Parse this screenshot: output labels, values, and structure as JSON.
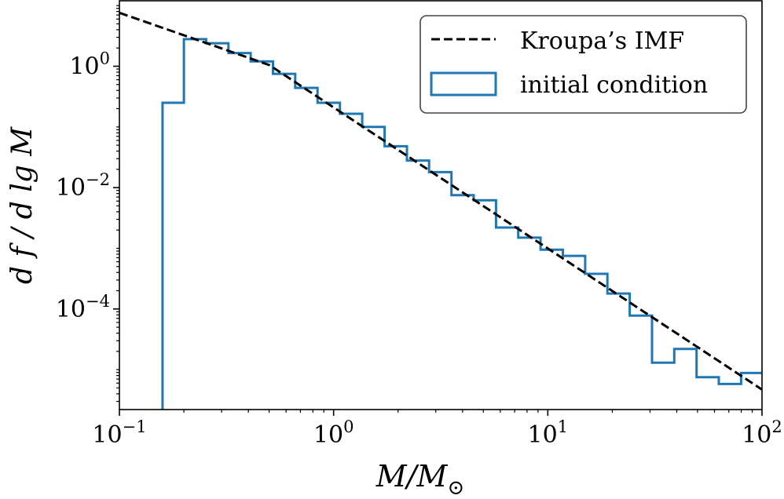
{
  "chart_data": {
    "type": "step",
    "xscale": "log",
    "yscale": "log",
    "xlim": [
      0.1,
      100
    ],
    "ylim": [
      2.2e-06,
      12
    ],
    "xlabel": {
      "main": "M/M",
      "sub": "⊙"
    },
    "ylabel": "d f / d lg M",
    "x_ticks": [
      {
        "value": 0.1,
        "base": "10",
        "exp": "−1"
      },
      {
        "value": 1,
        "base": "10",
        "exp": "0"
      },
      {
        "value": 10,
        "base": "10",
        "exp": "1"
      },
      {
        "value": 100,
        "base": "10",
        "exp": "2"
      }
    ],
    "y_ticks": [
      {
        "value": 1,
        "base": "10",
        "exp": "0"
      },
      {
        "value": 0.01,
        "base": "10",
        "exp": "−2"
      },
      {
        "value": 0.0001,
        "base": "10",
        "exp": "−4"
      }
    ],
    "legend": {
      "position": "top-right",
      "entries": [
        {
          "label": "Kroupa’s IMF",
          "style": "dashed",
          "color": "#000000"
        },
        {
          "label": "initial condition",
          "style": "step",
          "color": "#1f77b4"
        }
      ]
    },
    "series": [
      {
        "name": "Kroupa’s IMF",
        "kind": "dashed-line",
        "color": "#000000",
        "x": [
          0.1,
          0.5,
          100
        ],
        "y": [
          7.6,
          1.05,
          4.7e-06
        ]
      },
      {
        "name": "initial condition",
        "kind": "histogram",
        "color": "#1f77b4",
        "bin_edges": [
          0.159,
          0.2,
          0.254,
          0.323,
          0.41,
          0.521,
          0.662,
          0.841,
          1.07,
          1.36,
          1.73,
          2.2,
          2.79,
          3.55,
          4.51,
          5.73,
          7.28,
          9.25,
          11.76,
          14.94,
          18.98,
          24.12,
          30.65,
          38.94,
          49.48,
          62.87,
          79.89,
          100
        ],
        "values": [
          0.25,
          2.8,
          2.4,
          1.65,
          1.2,
          0.75,
          0.44,
          0.25,
          0.165,
          0.1,
          0.048,
          0.028,
          0.018,
          0.0075,
          0.0062,
          0.0022,
          0.0015,
          0.00095,
          0.00075,
          0.00038,
          0.00018,
          7.8e-05,
          1.3e-05,
          2.2e-05,
          7.5e-06,
          5.8e-06,
          8.8e-06
        ]
      }
    ]
  }
}
